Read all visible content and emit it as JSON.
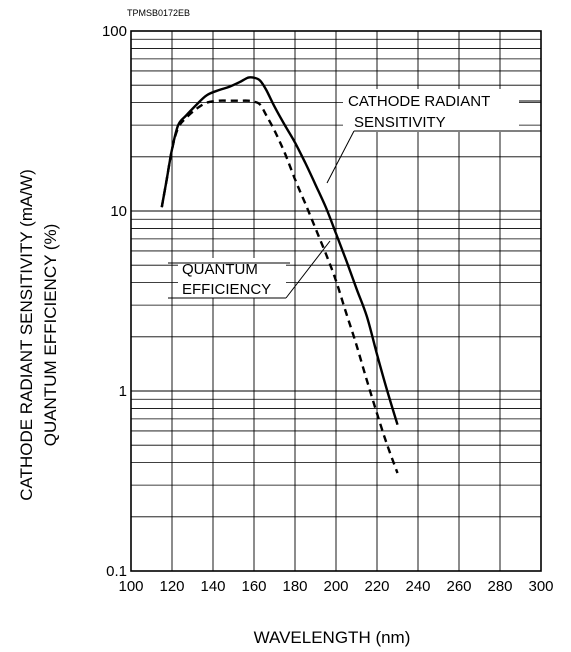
{
  "chart_data": {
    "type": "line",
    "figure_code": "TPMSB0172EB",
    "xlabel": "WAVELENGTH (nm)",
    "ylabel_lines": [
      "CATHODE RADIANT SENSITIVITY  (mA/W)",
      "QUANTUM EFFICIENCY (%)"
    ],
    "xlim": [
      100,
      300
    ],
    "ylim": [
      0.1,
      100
    ],
    "y_scale": "log",
    "grid": true,
    "x_ticks": [
      100,
      120,
      140,
      160,
      180,
      200,
      220,
      240,
      260,
      280,
      300
    ],
    "y_ticks": [
      {
        "value": 0.1,
        "label": "0.1"
      },
      {
        "value": 1,
        "label": "1"
      },
      {
        "value": 10,
        "label": "10"
      },
      {
        "value": 100,
        "label": "100"
      }
    ],
    "series": [
      {
        "key": "cathode",
        "label_lines": [
          "CATHODE RADIANT",
          "SENSITIVITY"
        ],
        "style": "solid",
        "x": [
          115,
          117,
          120,
          123,
          127,
          132,
          137,
          143,
          148,
          153,
          157,
          160,
          163,
          166,
          170,
          175,
          180,
          185,
          190,
          195,
          200,
          205,
          210,
          215,
          220,
          225,
          230
        ],
        "y": [
          10.5,
          14,
          22,
          30,
          34,
          39,
          44,
          47,
          49,
          52,
          55,
          55,
          53,
          47,
          38,
          30,
          24,
          18.5,
          14,
          10.5,
          7.5,
          5.3,
          3.7,
          2.6,
          1.6,
          1.0,
          0.65
        ]
      },
      {
        "key": "quantum",
        "label_lines": [
          "QUANTUM",
          "EFFICIENCY"
        ],
        "style": "dashed",
        "x": [
          115,
          117,
          120,
          123,
          127,
          132,
          137,
          143,
          148,
          153,
          157,
          160,
          163,
          166,
          170,
          175,
          180,
          185,
          190,
          195,
          200,
          205,
          210,
          215,
          220,
          225,
          230
        ],
        "y": [
          10.5,
          14,
          22,
          29,
          33,
          37,
          40,
          41,
          41,
          41,
          41,
          40.5,
          39,
          34,
          28,
          21,
          15,
          11,
          8,
          5.8,
          4.1,
          2.7,
          1.8,
          1.15,
          0.75,
          0.5,
          0.35
        ]
      }
    ]
  }
}
